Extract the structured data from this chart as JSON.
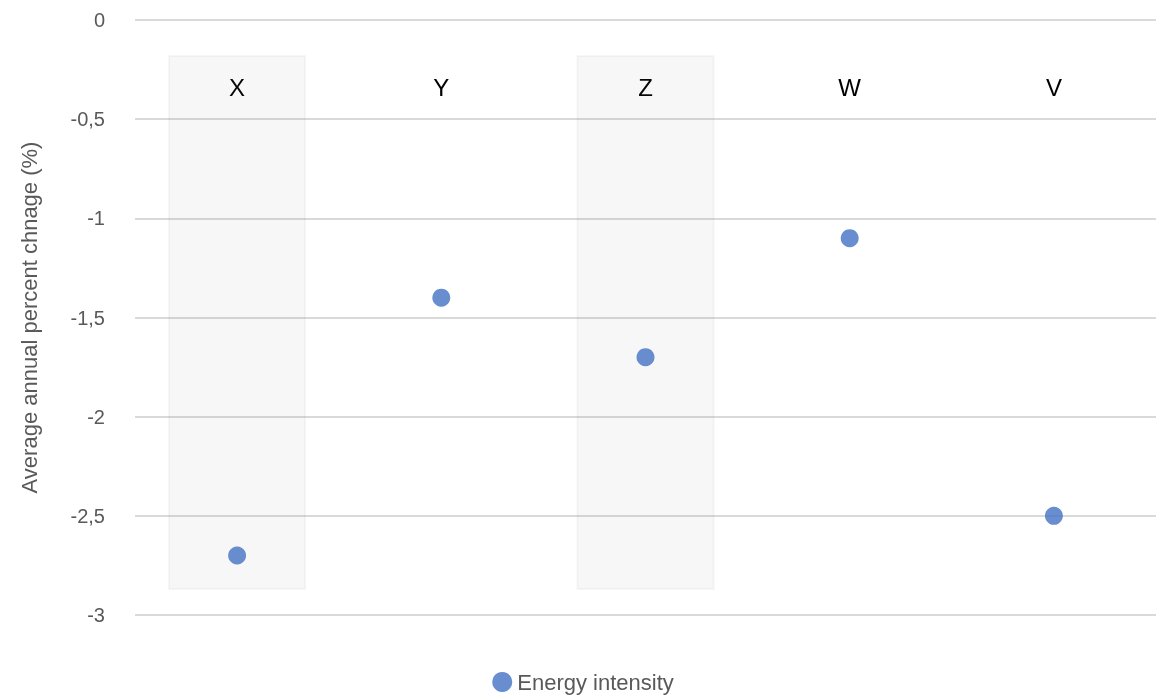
{
  "chart_data": {
    "type": "scatter",
    "ylabel": "Average annual percent chnage (%)",
    "categories": [
      "X",
      "Y",
      "Z",
      "W",
      "V"
    ],
    "series": [
      {
        "name": "Energy intensity",
        "color": "#4472c4",
        "values": [
          -2.7,
          -1.4,
          -1.7,
          -1.1,
          -2.5
        ]
      }
    ],
    "ylim": [
      -3,
      0
    ],
    "yticks": [
      0,
      {
        "value": -0.5,
        "label": "-0,5"
      },
      -1,
      {
        "value": -1.5,
        "label": "-1,5"
      },
      -2,
      {
        "value": -2.5,
        "label": "-2,5"
      },
      -3
    ],
    "bands": [
      {
        "axis": "x",
        "from": "X",
        "to": "X",
        "color": "#7f7f7f"
      },
      {
        "axis": "x",
        "from": "Z",
        "to": "Z",
        "color": "#7f7f7f"
      }
    ],
    "grid": "y",
    "legend": "bottom",
    "marker": "circle"
  }
}
